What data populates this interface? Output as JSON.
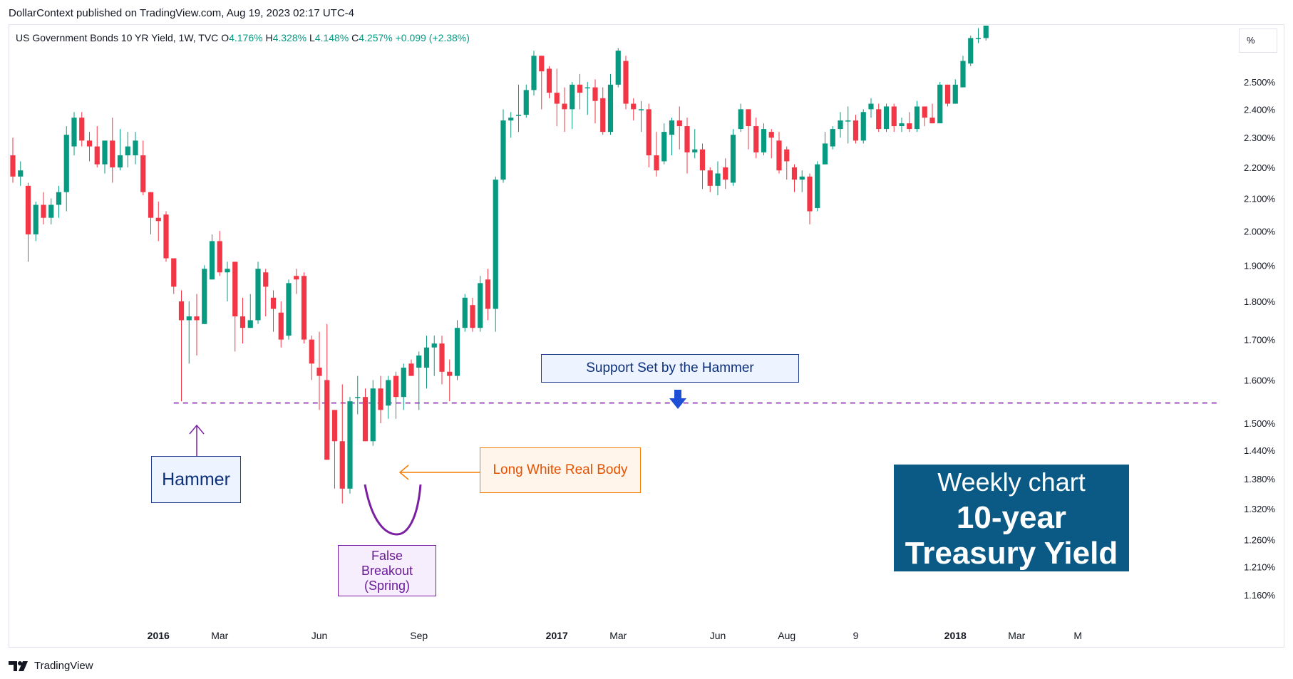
{
  "header": {
    "published": "DollarContext published on TradingView.com, Aug 19, 2023 02:17 UTC-4"
  },
  "legend": {
    "symbol": "US Government Bonds 10 YR Yield, 1W, TVC",
    "o_label": "O",
    "o_value": "4.176%",
    "h_label": "H",
    "h_value": "4.328%",
    "l_label": "L",
    "l_value": "4.148%",
    "c_label": "C",
    "c_value": "4.257%",
    "change": "+0.099 (+2.38%)"
  },
  "unit_label": "%",
  "footer": {
    "brand": "TradingView"
  },
  "annotations": {
    "hammer": "Hammer",
    "support": "Support Set by the Hammer",
    "long_body": "Long White Real Body",
    "false_breakout": [
      "False",
      "Breakout",
      "(Spring)"
    ],
    "weekly_title": "Weekly chart",
    "weekly_subtitle": "10-year Treasury Yield"
  },
  "colors": {
    "up": "#089981",
    "down": "#f23645",
    "support_line": "#7b1fa2",
    "hammer_arrow": "#7b1fa2",
    "long_arrow": "#f57c00",
    "spring_curve": "#7b1fa2",
    "support_arrow": "#1f4fd6",
    "title_box": "#0b5a86"
  },
  "chart_data": {
    "type": "candlestick",
    "log_scale": true,
    "ylim": [
      1.115,
      2.72
    ],
    "y_ticks": [
      "2.500%",
      "2.400%",
      "2.300%",
      "2.200%",
      "2.100%",
      "2.000%",
      "1.900%",
      "1.800%",
      "1.700%",
      "1.600%",
      "1.500%",
      "1.440%",
      "1.380%",
      "1.320%",
      "1.260%",
      "1.210%",
      "1.160%"
    ],
    "x_ticks": [
      {
        "label": "2016",
        "week": 19
      },
      {
        "label": "Mar",
        "week": 27
      },
      {
        "label": "Jun",
        "week": 40
      },
      {
        "label": "Sep",
        "week": 53
      },
      {
        "label": "2017",
        "week": 71
      },
      {
        "label": "Mar",
        "week": 79
      },
      {
        "label": "Jun",
        "week": 92
      },
      {
        "label": "Aug",
        "week": 101
      },
      {
        "label": "9",
        "week": 110
      },
      {
        "label": "2018",
        "week": 123
      },
      {
        "label": "Mar",
        "week": 131
      },
      {
        "label": "M",
        "week": 139
      }
    ],
    "support_level": 1.546,
    "candles": [
      [
        2.24,
        2.17,
        2.3,
        2.15
      ],
      [
        2.17,
        2.19,
        2.22,
        2.14
      ],
      [
        2.14,
        1.99,
        2.15,
        1.91
      ],
      [
        1.99,
        2.08,
        2.09,
        1.97
      ],
      [
        2.08,
        2.04,
        2.12,
        2.02
      ],
      [
        2.04,
        2.08,
        2.1,
        2.02
      ],
      [
        2.08,
        2.12,
        2.14,
        2.04
      ],
      [
        2.12,
        2.31,
        2.34,
        2.06
      ],
      [
        2.27,
        2.37,
        2.39,
        2.24
      ],
      [
        2.37,
        2.29,
        2.39,
        2.27
      ],
      [
        2.29,
        2.27,
        2.32,
        2.22
      ],
      [
        2.27,
        2.21,
        2.34,
        2.2
      ],
      [
        2.21,
        2.29,
        2.29,
        2.18
      ],
      [
        2.29,
        2.2,
        2.37,
        2.15
      ],
      [
        2.2,
        2.24,
        2.33,
        2.19
      ],
      [
        2.24,
        2.27,
        2.32,
        2.2
      ],
      [
        2.24,
        2.29,
        2.32,
        2.21
      ],
      [
        2.24,
        2.12,
        2.29,
        2.11
      ],
      [
        2.12,
        2.04,
        2.12,
        1.99
      ],
      [
        2.04,
        2.03,
        2.09,
        1.97
      ],
      [
        2.05,
        1.92,
        2.06,
        1.91
      ],
      [
        1.92,
        1.84,
        1.92,
        1.82
      ],
      [
        1.8,
        1.75,
        1.83,
        1.55
      ],
      [
        1.75,
        1.76,
        1.8,
        1.64
      ],
      [
        1.76,
        1.75,
        1.82,
        1.66
      ],
      [
        1.74,
        1.89,
        1.9,
        1.74
      ],
      [
        1.86,
        1.97,
        1.99,
        1.86
      ],
      [
        1.97,
        1.88,
        2.0,
        1.87
      ],
      [
        1.88,
        1.89,
        1.91,
        1.8
      ],
      [
        1.91,
        1.76,
        1.91,
        1.67
      ],
      [
        1.76,
        1.73,
        1.81,
        1.69
      ],
      [
        1.73,
        1.75,
        1.82,
        1.73
      ],
      [
        1.75,
        1.89,
        1.91,
        1.74
      ],
      [
        1.88,
        1.84,
        1.89,
        1.76
      ],
      [
        1.81,
        1.78,
        1.83,
        1.72
      ],
      [
        1.77,
        1.7,
        1.8,
        1.68
      ],
      [
        1.71,
        1.85,
        1.86,
        1.7
      ],
      [
        1.87,
        1.86,
        1.89,
        1.82
      ],
      [
        1.87,
        1.7,
        1.88,
        1.69
      ],
      [
        1.7,
        1.64,
        1.71,
        1.6
      ],
      [
        1.63,
        1.61,
        1.72,
        1.53
      ],
      [
        1.6,
        1.42,
        1.74,
        1.42
      ],
      [
        1.53,
        1.46,
        1.53,
        1.36
      ],
      [
        1.46,
        1.36,
        1.59,
        1.33
      ],
      [
        1.36,
        1.55,
        1.56,
        1.35
      ],
      [
        1.56,
        1.56,
        1.61,
        1.52
      ],
      [
        1.56,
        1.46,
        1.58,
        1.46
      ],
      [
        1.46,
        1.58,
        1.6,
        1.45
      ],
      [
        1.58,
        1.53,
        1.61,
        1.5
      ],
      [
        1.54,
        1.6,
        1.61,
        1.51
      ],
      [
        1.61,
        1.56,
        1.62,
        1.51
      ],
      [
        1.56,
        1.63,
        1.64,
        1.53
      ],
      [
        1.64,
        1.61,
        1.65,
        1.61
      ],
      [
        1.63,
        1.66,
        1.67,
        1.53
      ],
      [
        1.63,
        1.68,
        1.71,
        1.58
      ],
      [
        1.68,
        1.69,
        1.71,
        1.61
      ],
      [
        1.69,
        1.62,
        1.71,
        1.59
      ],
      [
        1.62,
        1.61,
        1.65,
        1.55
      ],
      [
        1.61,
        1.73,
        1.75,
        1.6
      ],
      [
        1.73,
        1.81,
        1.82,
        1.72
      ],
      [
        1.79,
        1.73,
        1.81,
        1.72
      ],
      [
        1.73,
        1.85,
        1.87,
        1.72
      ],
      [
        1.86,
        1.78,
        1.89,
        1.75
      ],
      [
        1.78,
        2.16,
        2.17,
        1.72
      ],
      [
        2.16,
        2.36,
        2.4,
        2.15
      ],
      [
        2.36,
        2.37,
        2.39,
        2.3
      ],
      [
        2.38,
        2.38,
        2.49,
        2.32
      ],
      [
        2.38,
        2.47,
        2.49,
        2.37
      ],
      [
        2.47,
        2.6,
        2.62,
        2.45
      ],
      [
        2.6,
        2.54,
        2.6,
        2.4
      ],
      [
        2.55,
        2.46,
        2.56,
        2.44
      ],
      [
        2.46,
        2.42,
        2.55,
        2.34
      ],
      [
        2.42,
        2.4,
        2.48,
        2.32
      ],
      [
        2.4,
        2.49,
        2.5,
        2.33
      ],
      [
        2.49,
        2.46,
        2.53,
        2.4
      ],
      [
        2.48,
        2.48,
        2.5,
        2.38
      ],
      [
        2.48,
        2.43,
        2.51,
        2.35
      ],
      [
        2.44,
        2.32,
        2.48,
        2.31
      ],
      [
        2.32,
        2.49,
        2.53,
        2.31
      ],
      [
        2.49,
        2.62,
        2.63,
        2.48
      ],
      [
        2.58,
        2.42,
        2.6,
        2.4
      ],
      [
        2.42,
        2.4,
        2.44,
        2.36
      ],
      [
        2.4,
        2.4,
        2.43,
        2.32
      ],
      [
        2.4,
        2.24,
        2.42,
        2.2
      ],
      [
        2.24,
        2.19,
        2.32,
        2.17
      ],
      [
        2.22,
        2.32,
        2.35,
        2.21
      ],
      [
        2.31,
        2.36,
        2.37,
        2.24
      ],
      [
        2.36,
        2.34,
        2.41,
        2.26
      ],
      [
        2.34,
        2.25,
        2.37,
        2.18
      ],
      [
        2.25,
        2.26,
        2.33,
        2.23
      ],
      [
        2.26,
        2.19,
        2.28,
        2.13
      ],
      [
        2.19,
        2.14,
        2.2,
        2.12
      ],
      [
        2.14,
        2.18,
        2.22,
        2.11
      ],
      [
        2.2,
        2.16,
        2.23,
        2.13
      ],
      [
        2.15,
        2.31,
        2.33,
        2.14
      ],
      [
        2.33,
        2.4,
        2.42,
        2.32
      ],
      [
        2.4,
        2.34,
        2.4,
        2.26
      ],
      [
        2.34,
        2.25,
        2.37,
        2.23
      ],
      [
        2.25,
        2.33,
        2.35,
        2.24
      ],
      [
        2.32,
        2.3,
        2.33,
        2.23
      ],
      [
        2.29,
        2.19,
        2.32,
        2.18
      ],
      [
        2.26,
        2.22,
        2.27,
        2.16
      ],
      [
        2.2,
        2.16,
        2.21,
        2.12
      ],
      [
        2.16,
        2.17,
        2.19,
        2.12
      ],
      [
        2.17,
        2.06,
        2.18,
        2.02
      ],
      [
        2.07,
        2.21,
        2.22,
        2.06
      ],
      [
        2.21,
        2.28,
        2.32,
        2.21
      ],
      [
        2.27,
        2.33,
        2.34,
        2.26
      ],
      [
        2.33,
        2.36,
        2.39,
        2.3
      ],
      [
        2.36,
        2.36,
        2.41,
        2.28
      ],
      [
        2.36,
        2.29,
        2.38,
        2.28
      ],
      [
        2.29,
        2.39,
        2.4,
        2.28
      ],
      [
        2.4,
        2.42,
        2.44,
        2.37
      ],
      [
        2.4,
        2.33,
        2.42,
        2.32
      ],
      [
        2.33,
        2.41,
        2.42,
        2.32
      ],
      [
        2.41,
        2.34,
        2.42,
        2.32
      ],
      [
        2.34,
        2.35,
        2.37,
        2.32
      ],
      [
        2.35,
        2.33,
        2.39,
        2.32
      ],
      [
        2.33,
        2.41,
        2.43,
        2.32
      ],
      [
        2.41,
        2.37,
        2.41,
        2.34
      ],
      [
        2.37,
        2.35,
        2.42,
        2.35
      ],
      [
        2.35,
        2.49,
        2.5,
        2.35
      ],
      [
        2.49,
        2.42,
        2.49,
        2.41
      ],
      [
        2.42,
        2.49,
        2.51,
        2.42
      ],
      [
        2.48,
        2.58,
        2.6,
        2.49
      ],
      [
        2.57,
        2.67,
        2.68,
        2.56
      ],
      [
        2.67,
        2.67,
        2.71,
        2.65
      ],
      [
        2.67,
        2.75,
        2.77,
        2.66
      ],
      [
        2.75,
        2.8,
        2.8,
        2.72
      ]
    ]
  }
}
